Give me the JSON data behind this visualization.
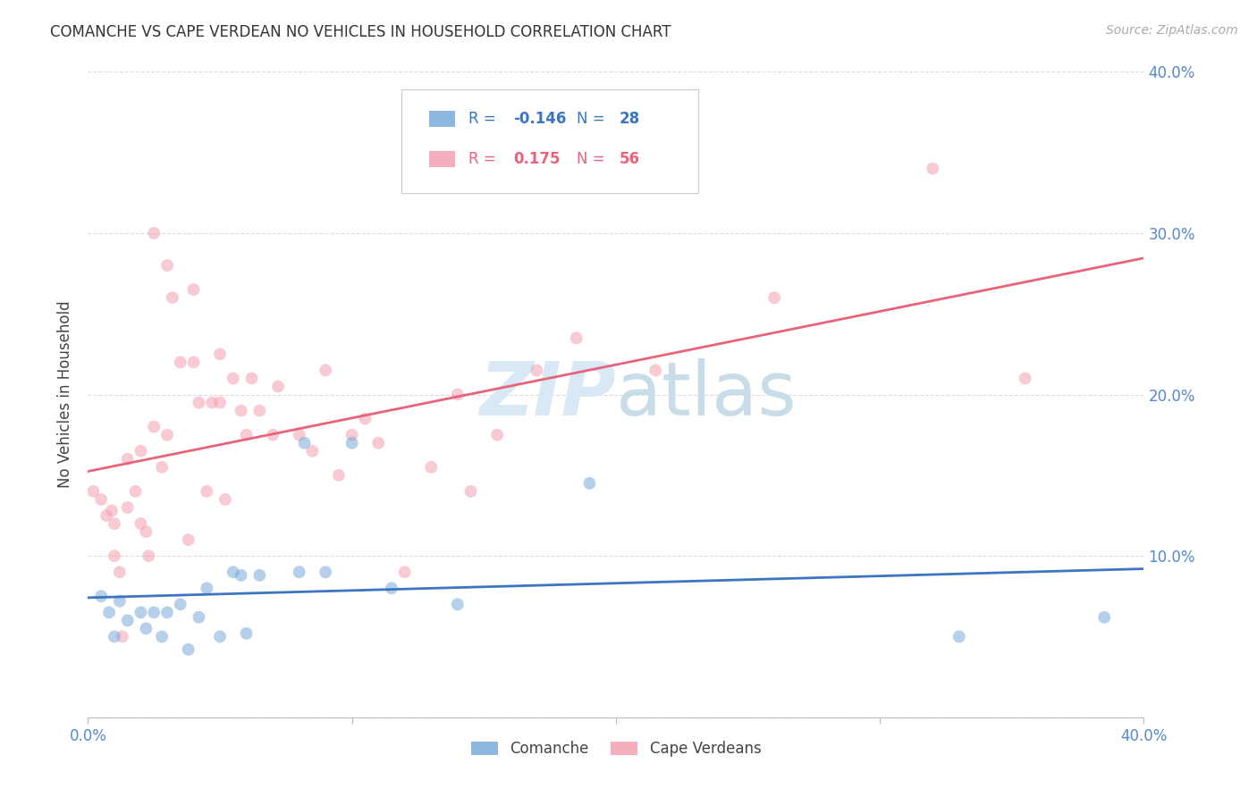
{
  "title": "COMANCHE VS CAPE VERDEAN NO VEHICLES IN HOUSEHOLD CORRELATION CHART",
  "source": "Source: ZipAtlas.com",
  "ylabel": "No Vehicles in Household",
  "xlim": [
    0.0,
    0.4
  ],
  "ylim": [
    0.0,
    0.4
  ],
  "xticks": [
    0.0,
    0.1,
    0.2,
    0.3,
    0.4
  ],
  "yticks": [
    0.0,
    0.1,
    0.2,
    0.3,
    0.4
  ],
  "xtick_labels": [
    "0.0%",
    "",
    "",
    "",
    "40.0%"
  ],
  "ytick_labels_right": [
    "",
    "10.0%",
    "20.0%",
    "30.0%",
    "40.0%"
  ],
  "comanche_R": -0.146,
  "comanche_N": 28,
  "capeverdean_R": 0.175,
  "capeverdean_N": 56,
  "comanche_color": "#7AABDB",
  "capeverdean_color": "#F4A0B0",
  "comanche_line_color": "#3B75C2",
  "capeverdean_line_color": "#E8637A",
  "watermark_color": "#D8E8F5",
  "background_color": "#FFFFFF",
  "comanche_x": [
    0.005,
    0.008,
    0.01,
    0.012,
    0.015,
    0.02,
    0.022,
    0.025,
    0.028,
    0.03,
    0.035,
    0.038,
    0.042,
    0.045,
    0.05,
    0.055,
    0.058,
    0.06,
    0.065,
    0.08,
    0.082,
    0.09,
    0.1,
    0.115,
    0.14,
    0.19,
    0.33,
    0.385
  ],
  "comanche_y": [
    0.075,
    0.065,
    0.05,
    0.072,
    0.06,
    0.065,
    0.055,
    0.065,
    0.05,
    0.065,
    0.07,
    0.042,
    0.062,
    0.08,
    0.05,
    0.09,
    0.088,
    0.052,
    0.088,
    0.09,
    0.17,
    0.09,
    0.17,
    0.08,
    0.07,
    0.145,
    0.05,
    0.062
  ],
  "capeverdean_x": [
    0.002,
    0.005,
    0.007,
    0.009,
    0.01,
    0.01,
    0.012,
    0.013,
    0.015,
    0.015,
    0.018,
    0.02,
    0.02,
    0.022,
    0.023,
    0.025,
    0.025,
    0.028,
    0.03,
    0.03,
    0.032,
    0.035,
    0.038,
    0.04,
    0.04,
    0.042,
    0.045,
    0.047,
    0.05,
    0.05,
    0.052,
    0.055,
    0.058,
    0.06,
    0.062,
    0.065,
    0.07,
    0.072,
    0.08,
    0.085,
    0.09,
    0.095,
    0.1,
    0.105,
    0.11,
    0.12,
    0.13,
    0.14,
    0.145,
    0.155,
    0.17,
    0.185,
    0.215,
    0.26,
    0.32,
    0.355
  ],
  "capeverdean_y": [
    0.14,
    0.135,
    0.125,
    0.128,
    0.12,
    0.1,
    0.09,
    0.05,
    0.16,
    0.13,
    0.14,
    0.165,
    0.12,
    0.115,
    0.1,
    0.3,
    0.18,
    0.155,
    0.28,
    0.175,
    0.26,
    0.22,
    0.11,
    0.265,
    0.22,
    0.195,
    0.14,
    0.195,
    0.225,
    0.195,
    0.135,
    0.21,
    0.19,
    0.175,
    0.21,
    0.19,
    0.175,
    0.205,
    0.175,
    0.165,
    0.215,
    0.15,
    0.175,
    0.185,
    0.17,
    0.09,
    0.155,
    0.2,
    0.14,
    0.175,
    0.215,
    0.235,
    0.215,
    0.26,
    0.34,
    0.21
  ],
  "marker_size": 100,
  "marker_alpha": 0.55
}
